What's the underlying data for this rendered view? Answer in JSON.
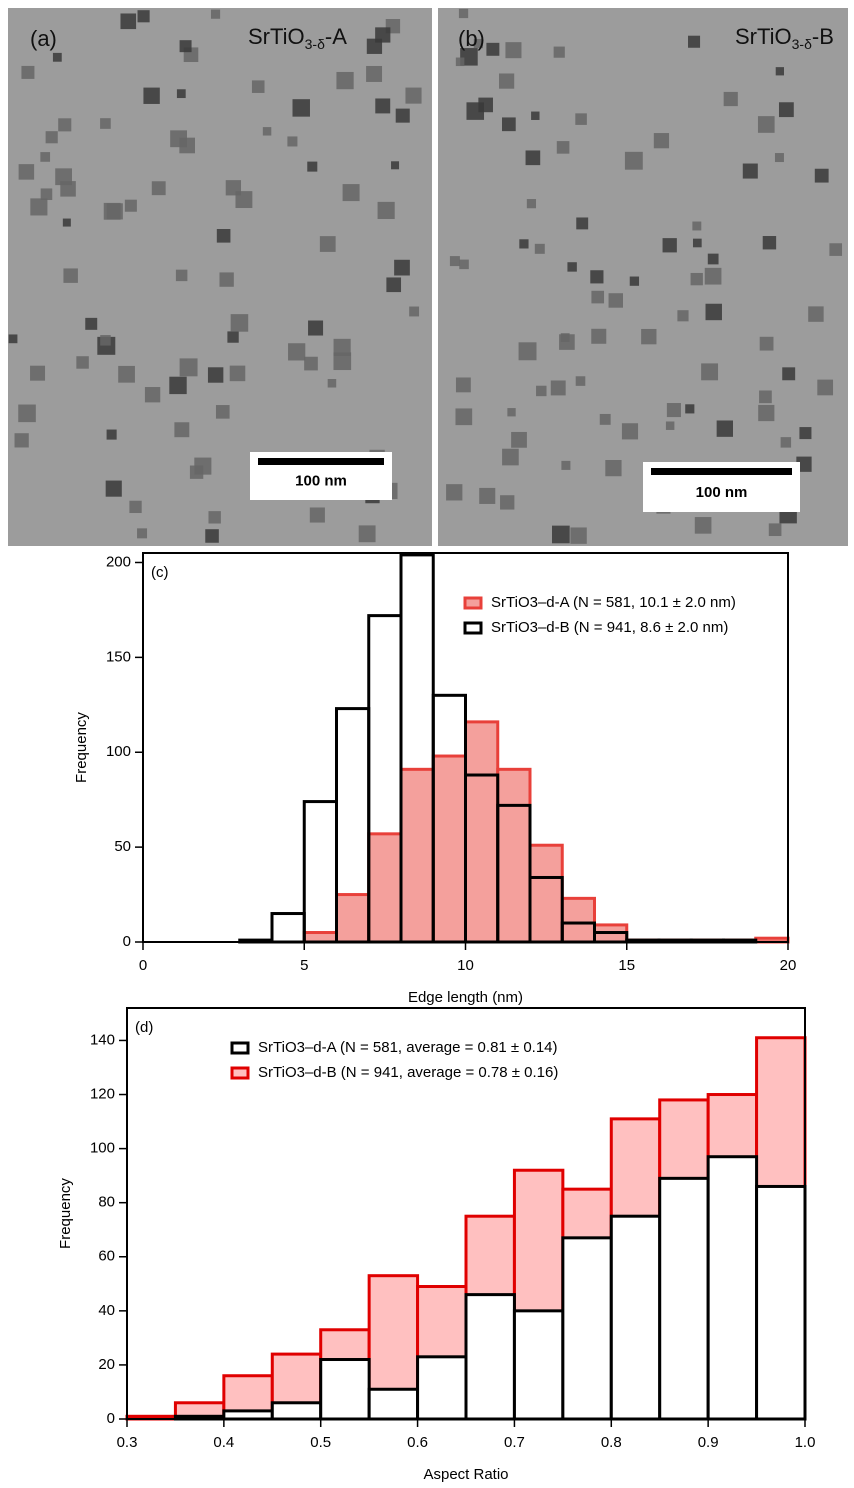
{
  "micrographs": [
    {
      "panel": "(a)",
      "label": {
        "base": "SrTiO",
        "sub": "3-δ",
        "suffix": "-A"
      },
      "scale_bar": "100 nm"
    },
    {
      "panel": "(b)",
      "label": {
        "base": "SrTiO",
        "sub": "3-δ",
        "suffix": "-B"
      },
      "scale_bar": "100 nm"
    }
  ],
  "chart_data": [
    {
      "type": "histogram",
      "panel_label": "(c)",
      "x_label": "Edge length (nm)",
      "y_label": "Frequency",
      "bins": [
        0,
        1,
        2,
        3,
        4,
        5,
        6,
        7,
        8,
        9,
        10,
        11,
        12,
        13,
        14,
        15,
        16,
        17,
        18,
        19,
        20
      ],
      "xlim": [
        0,
        20
      ],
      "ylim": [
        0,
        205
      ],
      "xticks": [
        0,
        5,
        10,
        15,
        20
      ],
      "yticks": [
        0,
        50,
        100,
        150,
        200
      ],
      "series": [
        {
          "name": "SrTiO3–d-A (N = 581, 10.1 ± 2.0 nm)",
          "color": "#e8403a",
          "fill": "#f4a09c",
          "values": [
            0,
            0,
            0,
            0,
            0,
            5,
            25,
            57,
            91,
            98,
            116,
            91,
            51,
            23,
            9,
            1,
            1,
            1,
            1,
            2
          ]
        },
        {
          "name": "SrTiO3–d-B (N = 941, 8.6 ± 2.0 nm)",
          "color": "#000000",
          "fill": "none",
          "values": [
            0,
            0,
            0,
            1,
            15,
            74,
            123,
            172,
            204,
            130,
            88,
            72,
            34,
            10,
            5,
            1,
            1,
            1,
            1,
            0
          ]
        }
      ]
    },
    {
      "type": "histogram",
      "panel_label": "(d)",
      "x_label": "Aspect Ratio",
      "y_label": "Frequency",
      "bins": [
        0.3,
        0.35,
        0.4,
        0.45,
        0.5,
        0.55,
        0.6,
        0.65,
        0.7,
        0.75,
        0.8,
        0.85,
        0.9,
        0.95,
        1.0
      ],
      "xlim": [
        0.3,
        1.0
      ],
      "ylim": [
        0,
        152
      ],
      "xticks": [
        0.3,
        0.4,
        0.5,
        0.6,
        0.7,
        0.8,
        0.9,
        {
          "value": 1.0,
          "label": "1.0"
        }
      ],
      "yticks": [
        0,
        20,
        40,
        60,
        80,
        100,
        120,
        140
      ],
      "series": [
        {
          "name": "SrTiO3–d-A (N = 581, average = 0.81 ± 0.14)",
          "color": "#000000",
          "fill": "#ffffff",
          "values": [
            0,
            1,
            3,
            6,
            22,
            11,
            23,
            46,
            40,
            67,
            75,
            89,
            97,
            86
          ]
        },
        {
          "name": "SrTiO3–d-B (N = 941, average = 0.78 ± 0.16)",
          "color": "#e00000",
          "fill": "#ffc0c0",
          "values": [
            1,
            6,
            16,
            24,
            33,
            53,
            49,
            75,
            92,
            85,
            111,
            118,
            120,
            141
          ]
        }
      ]
    }
  ]
}
